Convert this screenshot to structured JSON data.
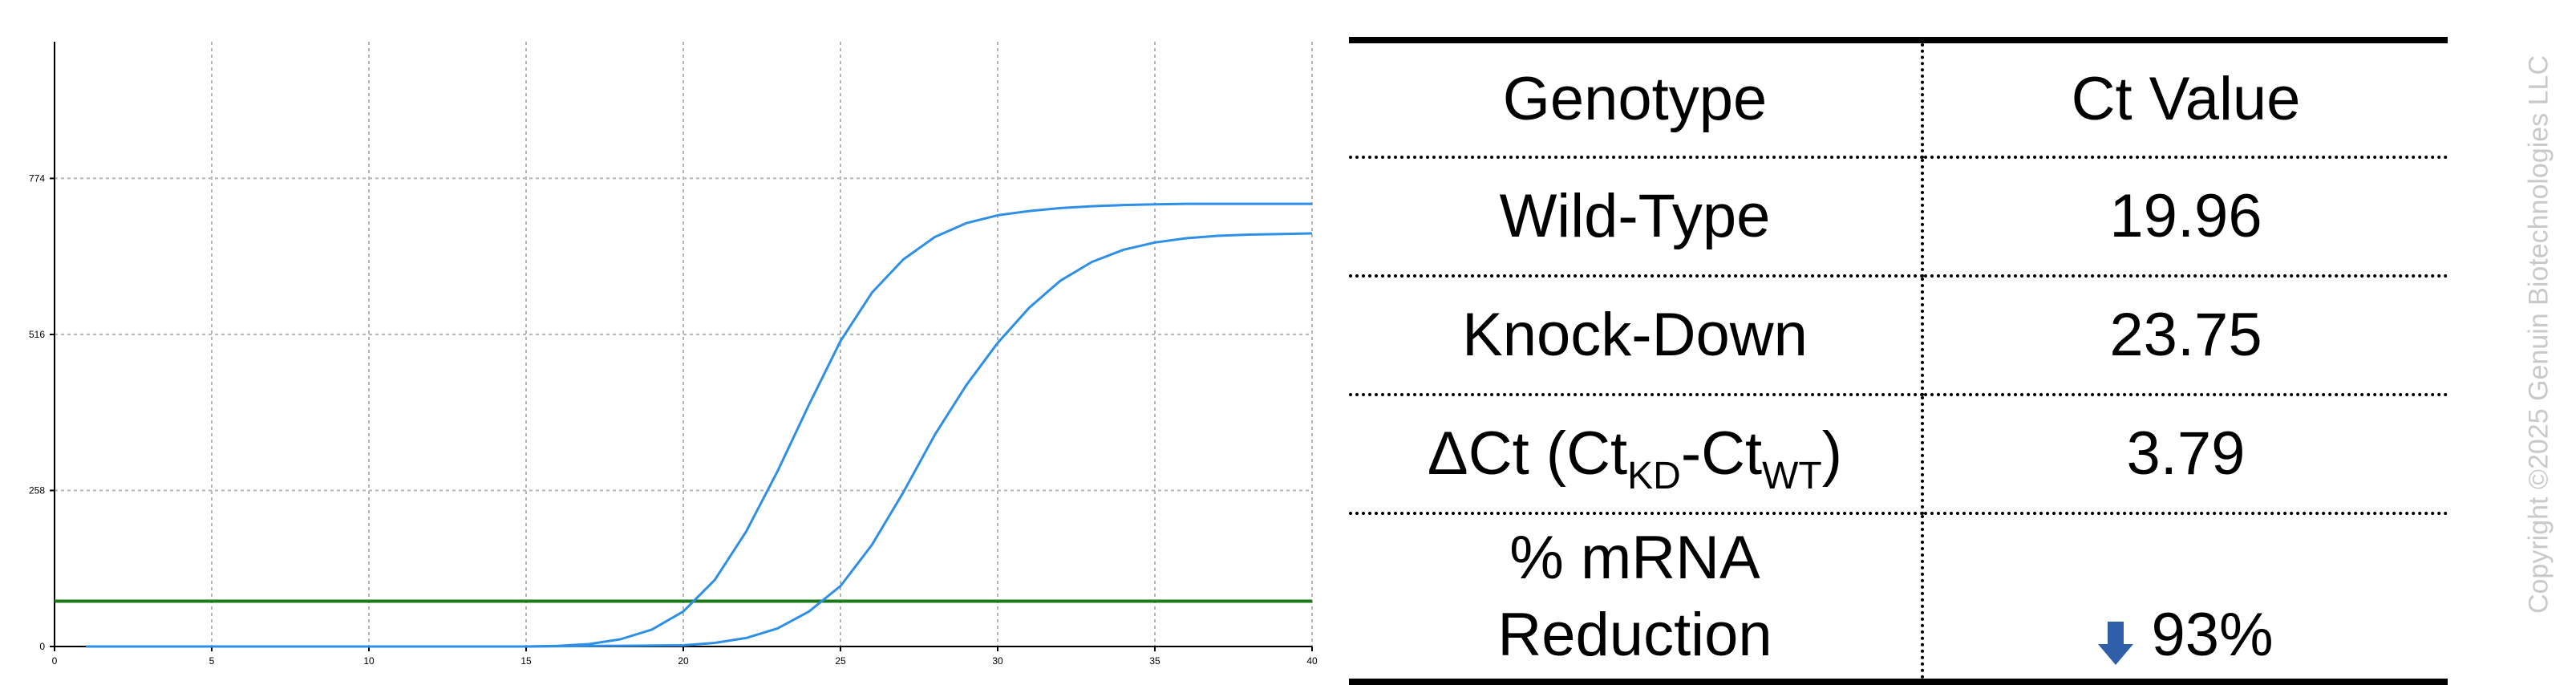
{
  "chart_data": {
    "type": "line",
    "title": "",
    "xlabel": "",
    "ylabel": "",
    "xlim": [
      0,
      40
    ],
    "ylim": [
      0,
      1000
    ],
    "x_ticks": [
      0,
      5,
      10,
      15,
      20,
      25,
      30,
      35,
      40
    ],
    "y_ticks": [
      0,
      258,
      516,
      774
    ],
    "grid": true,
    "colors": {
      "curve": "#2f8fe6",
      "threshold": "#1a7a1a",
      "grid": "#b5b5b5",
      "axis": "#000000"
    },
    "threshold": 75,
    "series": [
      {
        "x": [
          1,
          5,
          10,
          15,
          16,
          17,
          18,
          19,
          20,
          21,
          22,
          23,
          24,
          25,
          26,
          27,
          28,
          29,
          30,
          31,
          32,
          33,
          34,
          35,
          36,
          37,
          38,
          39,
          40
        ],
        "y": [
          0,
          0,
          0,
          0,
          1,
          4,
          12,
          28,
          58,
          110,
          190,
          290,
          400,
          505,
          585,
          640,
          677,
          700,
          713,
          720,
          725,
          728,
          730,
          731,
          732,
          732,
          732,
          732,
          732
        ]
      },
      {
        "x": [
          1,
          5,
          10,
          15,
          20,
          21,
          22,
          23,
          24,
          25,
          26,
          27,
          28,
          29,
          30,
          31,
          32,
          33,
          34,
          35,
          36,
          37,
          38,
          39,
          40
        ],
        "y": [
          0,
          0,
          0,
          0,
          2,
          6,
          14,
          30,
          58,
          100,
          168,
          255,
          350,
          432,
          502,
          560,
          605,
          636,
          656,
          668,
          675,
          679,
          681,
          682,
          683
        ]
      }
    ]
  },
  "table": {
    "header": {
      "genotype": "Genotype",
      "ct": "Ct Value"
    },
    "rows": [
      {
        "label": "Wild-Type",
        "value": "19.96"
      },
      {
        "label": "Knock-Down",
        "value": "23.75"
      }
    ],
    "delta": {
      "prefix": "ΔCt (Ct",
      "sub1": "KD",
      "mid": "-Ct",
      "sub2": "WT",
      "suffix": ")",
      "value": "3.79"
    },
    "reduction": {
      "line1": "% mRNA",
      "line2": "Reduction",
      "value": "93%",
      "arrow_icon": "down-arrow-icon",
      "arrow_color": "#2e5fa8"
    }
  },
  "copyright": "Copyright ©2025 Genuin Biotechnologies LLC"
}
